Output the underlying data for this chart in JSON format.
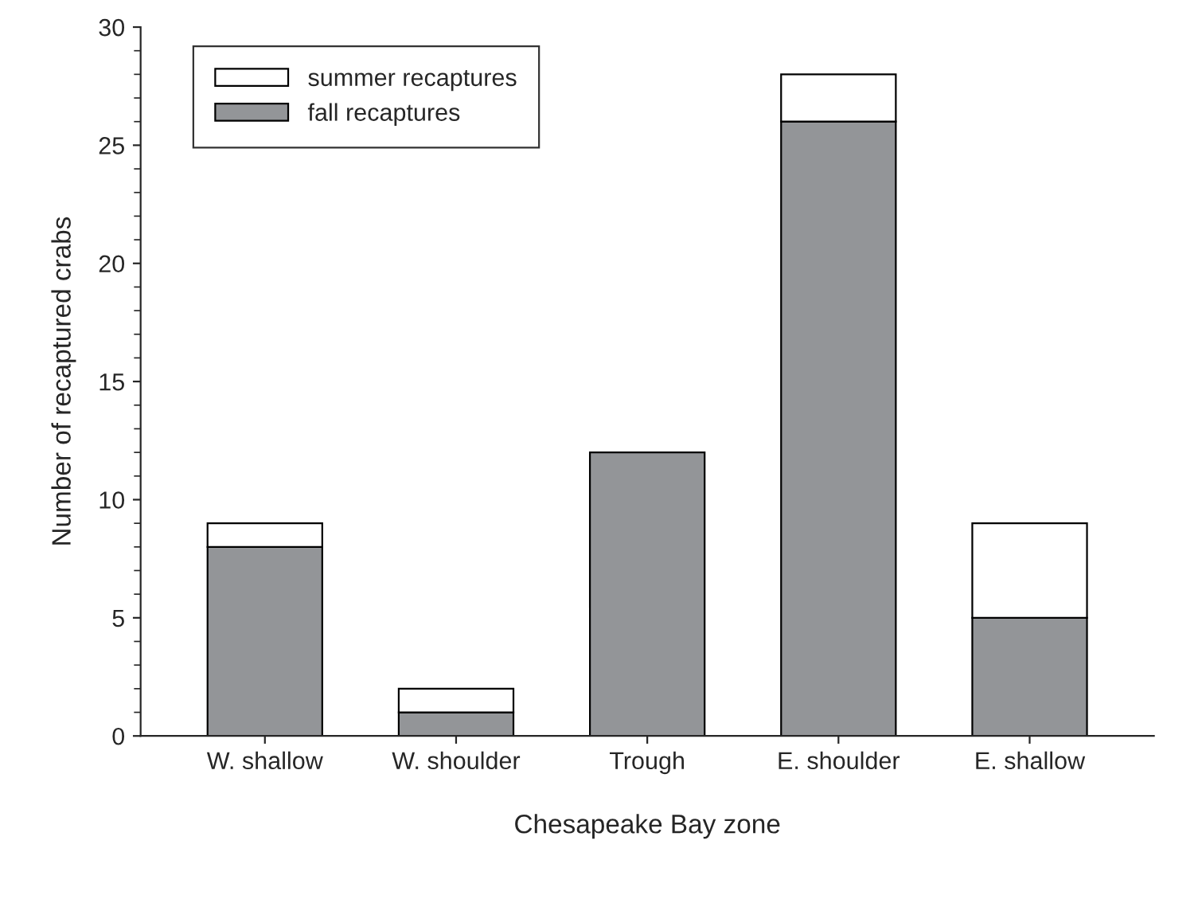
{
  "chart_data": {
    "type": "bar",
    "xlabel": "Chesapeake Bay zone",
    "ylabel": "Number of recaptured crabs",
    "categories": [
      "W. shallow",
      "W. shoulder",
      "Trough",
      "E. shoulder",
      "E. shallow"
    ],
    "stacked": true,
    "series": [
      {
        "name": "fall recaptures",
        "color": "#939598",
        "values": [
          8,
          1,
          12,
          26,
          5
        ]
      },
      {
        "name": "summer recaptures",
        "color": "#ffffff",
        "values": [
          1,
          1,
          null,
          2,
          4
        ]
      }
    ],
    "ylim": [
      0,
      30
    ],
    "yticks": [
      0,
      5,
      10,
      15,
      20,
      25,
      30
    ],
    "grid": false,
    "legend": "top left"
  }
}
